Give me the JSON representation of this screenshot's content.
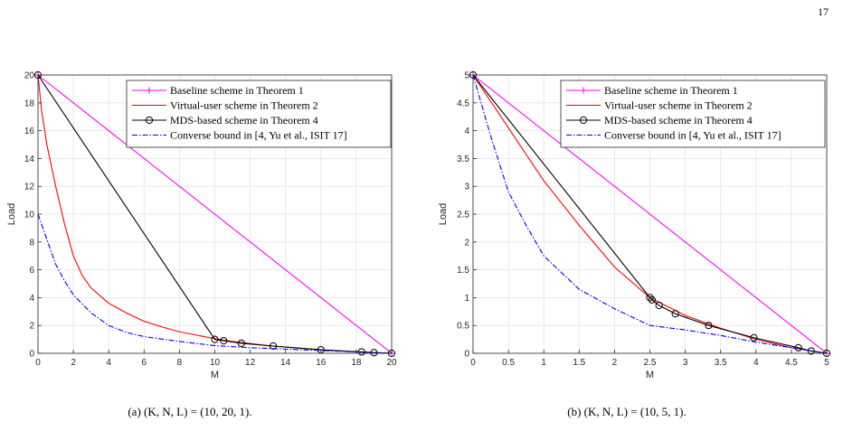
{
  "page_number": "17",
  "chart_data": [
    {
      "type": "line",
      "caption": "(a) (K, N, L) = (10, 20, 1).",
      "xlabel": "M",
      "ylabel": "Load",
      "xlim": [
        0,
        20
      ],
      "ylim": [
        0,
        20
      ],
      "xticks": [
        0,
        2,
        4,
        6,
        8,
        10,
        12,
        14,
        16,
        18,
        20
      ],
      "yticks": [
        0,
        2,
        4,
        6,
        8,
        10,
        12,
        14,
        16,
        18,
        20
      ],
      "grid": true,
      "legend_position": "top-right",
      "series": [
        {
          "name": "Baseline scheme in Theorem 1",
          "color": "#ff00ff",
          "style": "solid",
          "marker": "plus",
          "x": [
            0,
            20
          ],
          "y": [
            20,
            0
          ]
        },
        {
          "name": "Virtual-user scheme in Theorem 2",
          "color": "#ff0000",
          "style": "solid",
          "marker": "none",
          "x": [
            0,
            0.2,
            0.5,
            1,
            1.5,
            2,
            2.5,
            3,
            4,
            5,
            6,
            7,
            8,
            9,
            10,
            11,
            12,
            13,
            14,
            15,
            16,
            17,
            18,
            19,
            20
          ],
          "y": [
            20,
            17.5,
            15,
            12,
            9.3,
            7,
            5.6,
            4.7,
            3.6,
            2.9,
            2.3,
            1.9,
            1.55,
            1.3,
            1.05,
            0.85,
            0.7,
            0.55,
            0.45,
            0.35,
            0.26,
            0.18,
            0.1,
            0.05,
            0
          ]
        },
        {
          "name": "MDS-based scheme in Theorem 4",
          "color": "#000000",
          "style": "solid",
          "marker": "circle",
          "x": [
            0,
            10,
            10.5,
            11.5,
            13.3,
            16,
            18.3,
            19,
            20
          ],
          "y": [
            20,
            1,
            0.9,
            0.72,
            0.52,
            0.25,
            0.1,
            0.05,
            0
          ]
        },
        {
          "name": "Converse bound in [4, Yu et al., ISIT 17]",
          "color": "#0000ff",
          "style": "dashdot",
          "marker": "none",
          "x": [
            0,
            0.5,
            1,
            1.5,
            2,
            3,
            4,
            5,
            6,
            8,
            10,
            12,
            14,
            16,
            18,
            20
          ],
          "y": [
            10,
            8.2,
            6.4,
            5.2,
            4.2,
            2.9,
            2.0,
            1.5,
            1.2,
            0.85,
            0.55,
            0.4,
            0.3,
            0.2,
            0.1,
            0
          ]
        }
      ]
    },
    {
      "type": "line",
      "caption": "(b) (K, N, L) = (10, 5, 1).",
      "xlabel": "M",
      "ylabel": "Load",
      "xlim": [
        0,
        5
      ],
      "ylim": [
        0,
        5
      ],
      "xticks": [
        0,
        0.5,
        1,
        1.5,
        2,
        2.5,
        3,
        3.5,
        4,
        4.5,
        5
      ],
      "yticks": [
        0,
        0.5,
        1,
        1.5,
        2,
        2.5,
        3,
        3.5,
        4,
        4.5,
        5
      ],
      "grid": true,
      "legend_position": "top-right",
      "series": [
        {
          "name": "Baseline scheme  in Theorem 1",
          "color": "#ff00ff",
          "style": "solid",
          "marker": "plus",
          "x": [
            0,
            5
          ],
          "y": [
            5,
            0
          ]
        },
        {
          "name": "Virtual-user scheme in Theorem 2",
          "color": "#ff0000",
          "style": "solid",
          "marker": "none",
          "x": [
            0,
            0.5,
            1,
            1.5,
            2,
            2.5,
            3,
            3.5,
            4,
            4.5,
            5
          ],
          "y": [
            5,
            4.05,
            3.1,
            2.3,
            1.55,
            1.0,
            0.68,
            0.45,
            0.25,
            0.1,
            0
          ]
        },
        {
          "name": "MDS-based scheme in Theorem 4",
          "color": "#000000",
          "style": "solid",
          "marker": "circle",
          "x": [
            0,
            2.5,
            2.53,
            2.63,
            2.86,
            3.33,
            3.97,
            4.6,
            4.78,
            5
          ],
          "y": [
            5,
            1.0,
            0.96,
            0.86,
            0.71,
            0.5,
            0.28,
            0.1,
            0.04,
            0
          ]
        },
        {
          "name": "Converse bound in [4, Yu et al., ISIT 17]",
          "color": "#0000ff",
          "style": "dashdot",
          "marker": "none",
          "x": [
            0,
            0.25,
            0.5,
            0.75,
            1,
            1.5,
            2,
            2.5,
            3,
            3.5,
            4,
            4.5,
            5
          ],
          "y": [
            5,
            3.9,
            2.9,
            2.3,
            1.75,
            1.15,
            0.8,
            0.5,
            0.42,
            0.32,
            0.2,
            0.1,
            0
          ]
        }
      ]
    }
  ]
}
